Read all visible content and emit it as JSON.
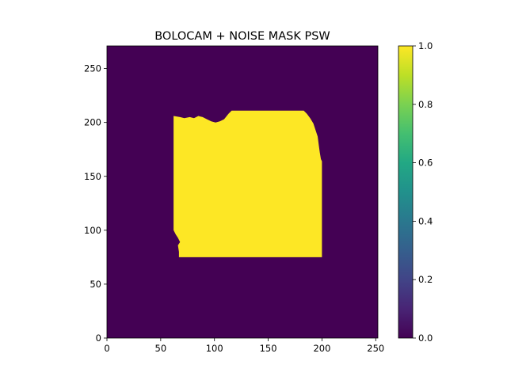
{
  "chart_data": {
    "type": "heatmap",
    "title": "BOLOCAM + NOISE MASK PSW",
    "xlabel": "",
    "ylabel": "",
    "xlim": [
      0,
      252
    ],
    "ylim": [
      0,
      271
    ],
    "x_ticks": [
      0,
      50,
      100,
      150,
      200,
      250
    ],
    "y_ticks": [
      0,
      50,
      100,
      150,
      200,
      250
    ],
    "background_value": 0,
    "mask_value": 1,
    "mask_region": {
      "description_points_data_units": [
        [
          62,
          206
        ],
        [
          68,
          205
        ],
        [
          72,
          204
        ],
        [
          77,
          205
        ],
        [
          81,
          204
        ],
        [
          85,
          206
        ],
        [
          89,
          205
        ],
        [
          93,
          203
        ],
        [
          97,
          201
        ],
        [
          101,
          200
        ],
        [
          105,
          201
        ],
        [
          109,
          203
        ],
        [
          113,
          208
        ],
        [
          116,
          211
        ],
        [
          183,
          211
        ],
        [
          186,
          208
        ],
        [
          189,
          204
        ],
        [
          192,
          199
        ],
        [
          194,
          193
        ],
        [
          196,
          187
        ],
        [
          197,
          179
        ],
        [
          198,
          172
        ],
        [
          199,
          166
        ],
        [
          200,
          164
        ],
        [
          200,
          75
        ],
        [
          67,
          75
        ],
        [
          67,
          80
        ],
        [
          66,
          86
        ],
        [
          68,
          89
        ],
        [
          66,
          93
        ],
        [
          64,
          96
        ],
        [
          62,
          100
        ]
      ]
    },
    "colorbar": {
      "colormap": "viridis",
      "range": [
        0.0,
        1.0
      ],
      "ticks": [
        0.0,
        0.2,
        0.4,
        0.6,
        0.8,
        1.0
      ],
      "tick_labels": [
        "0.0",
        "0.2",
        "0.4",
        "0.6",
        "0.8",
        "1.0"
      ]
    },
    "colors": {
      "low": "#440154",
      "high": "#fde725"
    }
  }
}
